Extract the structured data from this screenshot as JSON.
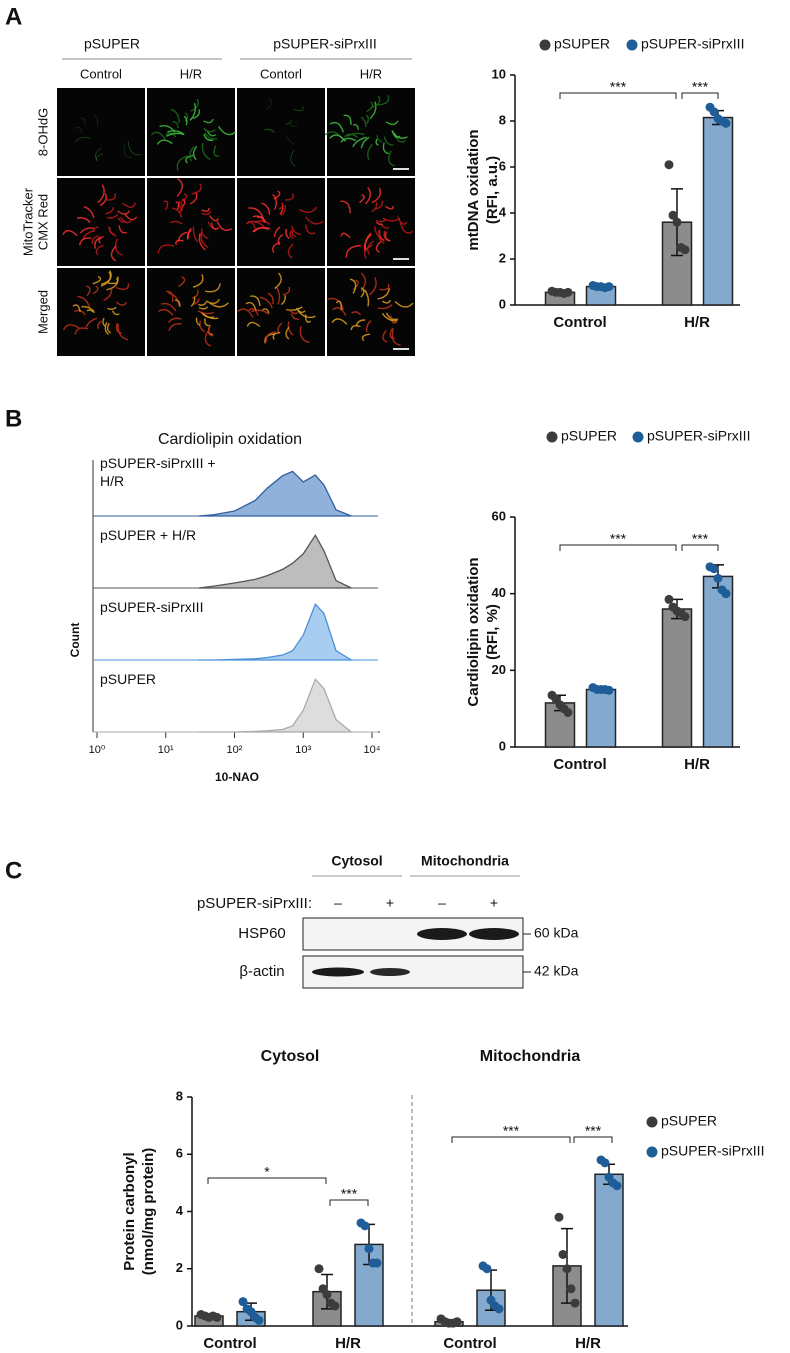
{
  "panel_labels": [
    "A",
    "B",
    "C"
  ],
  "panel_a": {
    "groups": [
      "pSUPER",
      "pSUPER-siPrxIII"
    ],
    "columns": [
      "Control",
      "H/R",
      "Contorl",
      "H/R"
    ],
    "rows": [
      [
        "8-OHdG"
      ],
      [
        "MitoTracker",
        "CMX Red"
      ],
      [
        "Merged"
      ]
    ]
  },
  "chart_data": [
    {
      "type": "bar",
      "ylabel": [
        "mtDNA oxidation",
        "(RFI, a.u.)"
      ],
      "categories": [
        "Control",
        "H/R"
      ],
      "ylim": [
        0,
        10
      ],
      "yticks": [
        0,
        2,
        4,
        6,
        8,
        10
      ],
      "series": [
        {
          "name": "pSUPER",
          "color": "#8c8c8c",
          "point_color": "#3c3c3c",
          "values": [
            0.55,
            3.6
          ],
          "errors": [
            0.05,
            1.45
          ],
          "points": [
            [
              0.6,
              0.55,
              0.55,
              0.5,
              0.55
            ],
            [
              6.1,
              3.9,
              3.6,
              2.5,
              2.4
            ]
          ]
        },
        {
          "name": "pSUPER-siPrxIII",
          "color": "#84a9cf",
          "point_color": "#1f5d99",
          "values": [
            0.8,
            8.15
          ],
          "errors": [
            0.05,
            0.3
          ],
          "points": [
            [
              0.85,
              0.8,
              0.8,
              0.75,
              0.8
            ],
            [
              8.6,
              8.4,
              8.1,
              8.0,
              7.9
            ]
          ]
        }
      ],
      "significance": [
        "***",
        "***"
      ]
    },
    {
      "type": "area",
      "title": "Cardiolipin oxidation",
      "xlabel": "10-NAO",
      "ylabel": "Count",
      "xscale": "log",
      "xlim": [
        1,
        10000
      ],
      "xticks": [
        {
          "value": 1,
          "label": "10⁰"
        },
        {
          "value": 10,
          "label": "10¹"
        },
        {
          "value": 100,
          "label": "10²"
        },
        {
          "value": 1000,
          "label": "10³"
        },
        {
          "value": 10000,
          "label": "10⁴"
        }
      ],
      "ylim": [
        0,
        100
      ],
      "x": [
        30,
        50,
        100,
        200,
        300,
        500,
        700,
        1000,
        1500,
        2000,
        3000,
        5000
      ],
      "series": [
        {
          "name": "pSUPER-siPrxIII + H/R",
          "color": "#2f5f9e",
          "fill": "#8fb1da",
          "values": [
            0,
            2,
            8,
            25,
            45,
            65,
            72,
            55,
            66,
            50,
            10,
            0
          ]
        },
        {
          "name": "pSUPER + H/R",
          "color": "#555555",
          "fill": "#bdbdbd",
          "values": [
            0,
            3,
            8,
            14,
            20,
            30,
            40,
            55,
            85,
            60,
            12,
            0
          ]
        },
        {
          "name": "pSUPER-siPrxIII",
          "color": "#4a90d9",
          "fill": "#a9cdf0",
          "values": [
            0,
            0,
            1,
            2,
            4,
            8,
            15,
            40,
            90,
            75,
            15,
            0
          ]
        },
        {
          "name": "pSUPER",
          "color": "#aaaaaa",
          "fill": "#dddddd",
          "values": [
            0,
            0,
            0,
            1,
            2,
            4,
            10,
            35,
            85,
            70,
            20,
            0
          ]
        }
      ]
    },
    {
      "type": "bar",
      "ylabel": [
        "Cardiolipin oxidation",
        "(RFI, %)"
      ],
      "categories": [
        "Control",
        "H/R"
      ],
      "ylim": [
        0,
        60
      ],
      "yticks": [
        0,
        20,
        40,
        60
      ],
      "series": [
        {
          "name": "pSUPER",
          "color": "#8c8c8c",
          "point_color": "#3c3c3c",
          "values": [
            11.5,
            36
          ],
          "errors": [
            2,
            2.5
          ],
          "points": [
            [
              13.5,
              12.5,
              11,
              10,
              9
            ],
            [
              38.5,
              36.5,
              35.5,
              35,
              34
            ]
          ]
        },
        {
          "name": "pSUPER-siPrxIII",
          "color": "#84a9cf",
          "point_color": "#1f5d99",
          "values": [
            15,
            44.5
          ],
          "errors": [
            0.8,
            3
          ],
          "points": [
            [
              15.5,
              15,
              15,
              15,
              14.8
            ],
            [
              47,
              46.5,
              44,
              41,
              40
            ]
          ]
        }
      ],
      "significance": [
        "***",
        "***"
      ]
    },
    {
      "type": "bar",
      "ylabel": [
        "Protein carbonyl",
        "(nmol/mg protein)"
      ],
      "groups": [
        "Cytosol",
        "Mitochondria"
      ],
      "categories": [
        "Control",
        "H/R",
        "Control",
        "H/R"
      ],
      "ylim": [
        0,
        8
      ],
      "yticks": [
        0,
        2,
        4,
        6,
        8
      ],
      "series": [
        {
          "name": "pSUPER",
          "color": "#8c8c8c",
          "point_color": "#3c3c3c",
          "values": [
            0.35,
            1.2,
            0.15,
            2.1
          ],
          "errors": [
            0.05,
            0.6,
            0.05,
            1.3
          ],
          "points": [
            [
              0.4,
              0.35,
              0.3,
              0.35,
              0.3
            ],
            [
              2.0,
              1.3,
              1.1,
              0.8,
              0.7
            ],
            [
              0.25,
              0.15,
              0.1,
              0.1,
              0.15
            ],
            [
              3.8,
              2.5,
              2.0,
              1.3,
              0.8
            ]
          ]
        },
        {
          "name": "pSUPER-siPrxIII",
          "color": "#84a9cf",
          "point_color": "#1f5d99",
          "values": [
            0.5,
            2.85,
            1.25,
            5.3
          ],
          "errors": [
            0.3,
            0.7,
            0.7,
            0.35
          ],
          "points": [
            [
              0.85,
              0.6,
              0.5,
              0.3,
              0.2
            ],
            [
              3.6,
              3.5,
              2.7,
              2.2,
              2.2
            ],
            [
              2.1,
              2.0,
              0.9,
              0.7,
              0.6
            ],
            [
              5.8,
              5.7,
              5.2,
              5.0,
              4.9
            ]
          ]
        }
      ],
      "significance": [
        "*",
        "***",
        "***",
        "***"
      ]
    }
  ],
  "blot": {
    "fractions": [
      "Cytosol",
      "Mitochondria"
    ],
    "treatment": "pSUPER-siPrxIII:",
    "lanes": [
      "–",
      "+",
      "–",
      "+"
    ],
    "proteins": [
      "HSP60",
      "β-actin"
    ],
    "sizes": [
      "60 kDa",
      "42 kDa"
    ]
  }
}
